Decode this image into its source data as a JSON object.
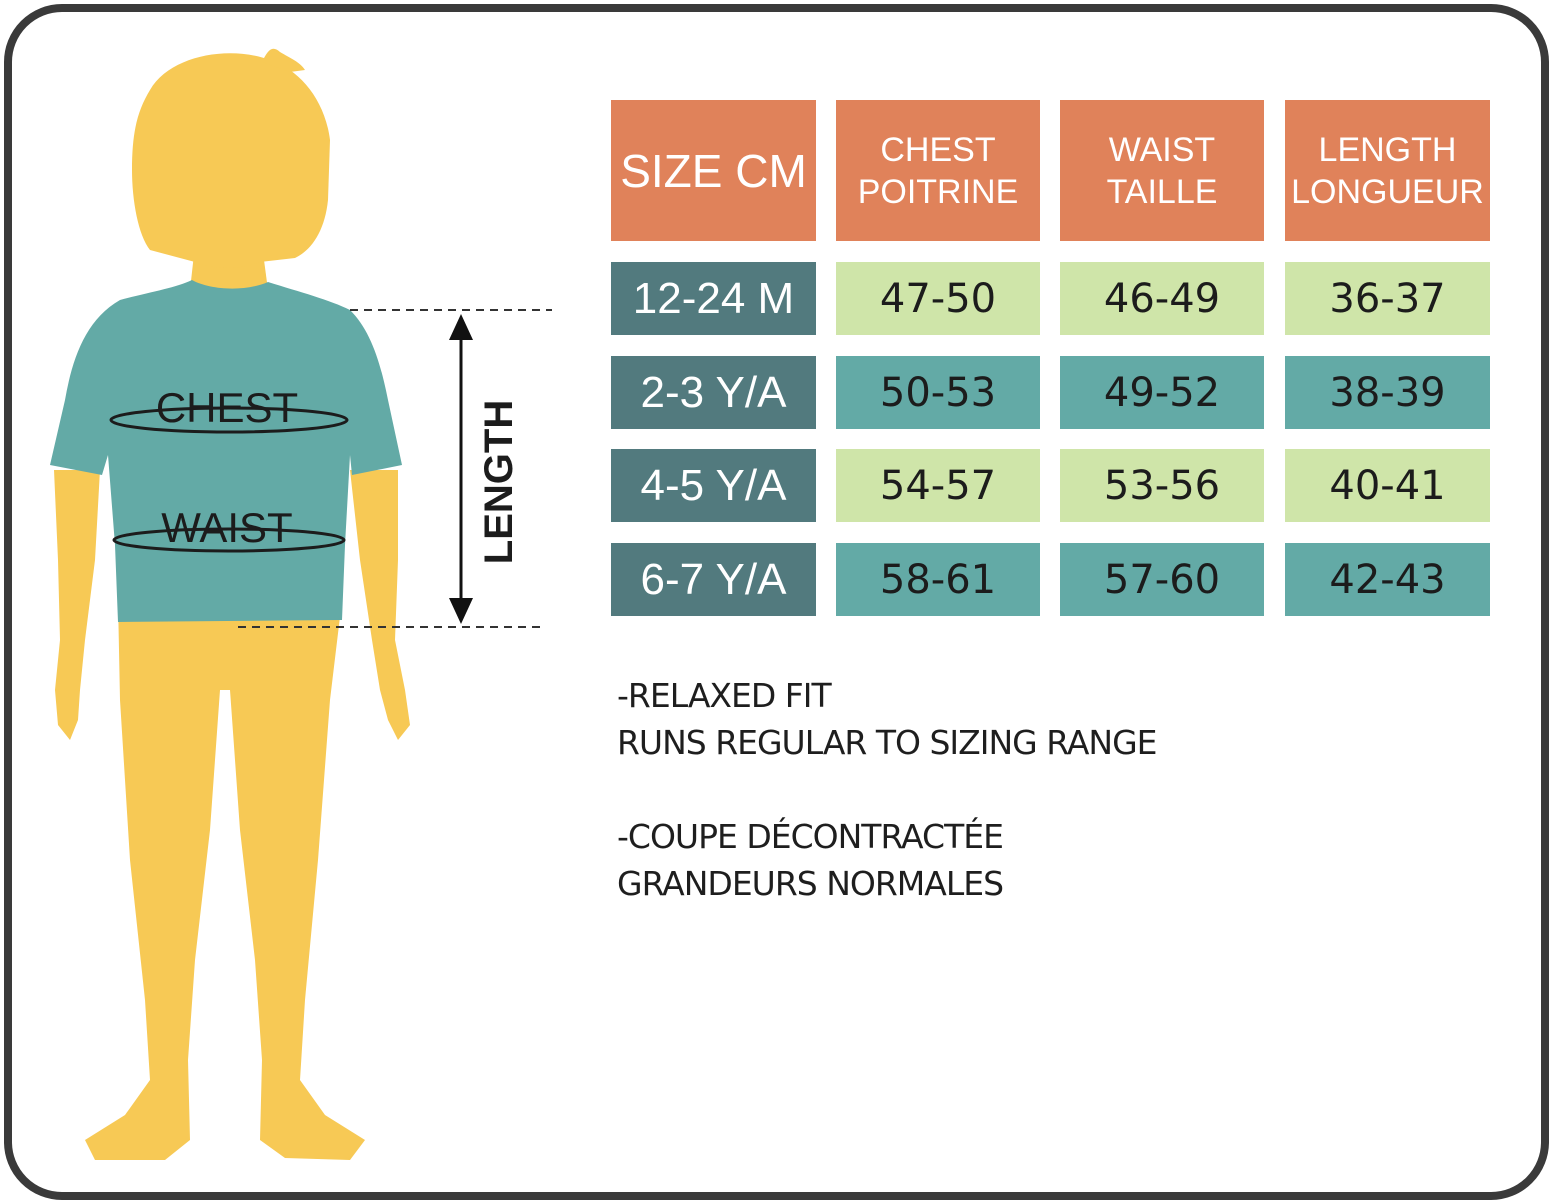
{
  "figure": {
    "chest_label": "CHEST",
    "waist_label": "WAIST",
    "length_label": "LENGTH"
  },
  "table": {
    "headers": [
      "SIZE CM",
      "CHEST\nPOITRINE",
      "WAIST\nTAILLE",
      "LENGTH\nLONGUEUR"
    ],
    "rows": [
      {
        "size": "12-24 M",
        "chest": "47-50",
        "waist": "46-49",
        "length": "36-37"
      },
      {
        "size": "2-3 Y/A",
        "chest": "50-53",
        "waist": "49-52",
        "length": "38-39"
      },
      {
        "size": "4-5 Y/A",
        "chest": "54-57",
        "waist": "53-56",
        "length": "40-41"
      },
      {
        "size": "6-7 Y/A",
        "chest": "58-61",
        "waist": "57-60",
        "length": "42-43"
      }
    ]
  },
  "notes": {
    "en_line1": "-RELAXED FIT",
    "en_line2": "RUNS REGULAR TO SIZING RANGE",
    "fr_line1": "-COUPE DÉCONTRACTÉE",
    "fr_line2": "GRANDEURS NORMALES"
  },
  "colors": {
    "header": "#e0825a",
    "size_label": "#527a7e",
    "row_light": "#cfe5a9",
    "row_teal": "#63aaa6",
    "body": "#f7c955",
    "shirt": "#63aaa6",
    "frame": "#3a3a3a"
  }
}
